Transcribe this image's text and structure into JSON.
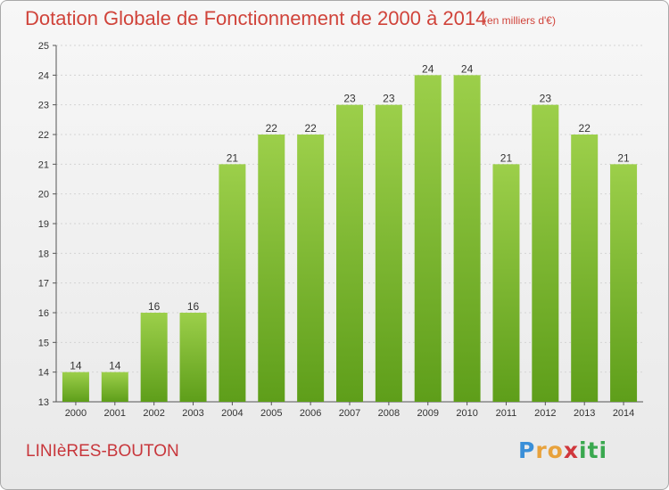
{
  "title": "Dotation Globale de Fonctionnement de 2000 à 2014",
  "unit": "(en milliers d'€)",
  "commune": "LINIèRES-BOUTON",
  "logo": {
    "letters": [
      "P",
      "r",
      "o",
      "x",
      "i",
      "t",
      "i"
    ],
    "colors": [
      "#3a8fd8",
      "#e8a23c",
      "#e8a23c",
      "#d0373c",
      "#3aa84f",
      "#3aa84f",
      "#3aa84f"
    ]
  },
  "colors": {
    "bar_top": "#9ccf4a",
    "bar_bottom": "#5e9e1a",
    "title": "#d0433a"
  },
  "chart_data": {
    "type": "bar",
    "title": "Dotation Globale de Fonctionnement de 2000 à 2014",
    "xlabel": "",
    "ylabel": "",
    "ylim": [
      13,
      25
    ],
    "yticks": [
      13,
      14,
      15,
      16,
      17,
      18,
      19,
      20,
      21,
      22,
      23,
      24,
      25
    ],
    "grid": true,
    "categories": [
      "2000",
      "2001",
      "2002",
      "2003",
      "2004",
      "2005",
      "2006",
      "2007",
      "2008",
      "2009",
      "2010",
      "2011",
      "2012",
      "2013",
      "2014"
    ],
    "values": [
      14,
      14,
      16,
      16,
      21,
      22,
      22,
      23,
      23,
      24,
      24,
      21,
      23,
      22,
      21
    ]
  }
}
